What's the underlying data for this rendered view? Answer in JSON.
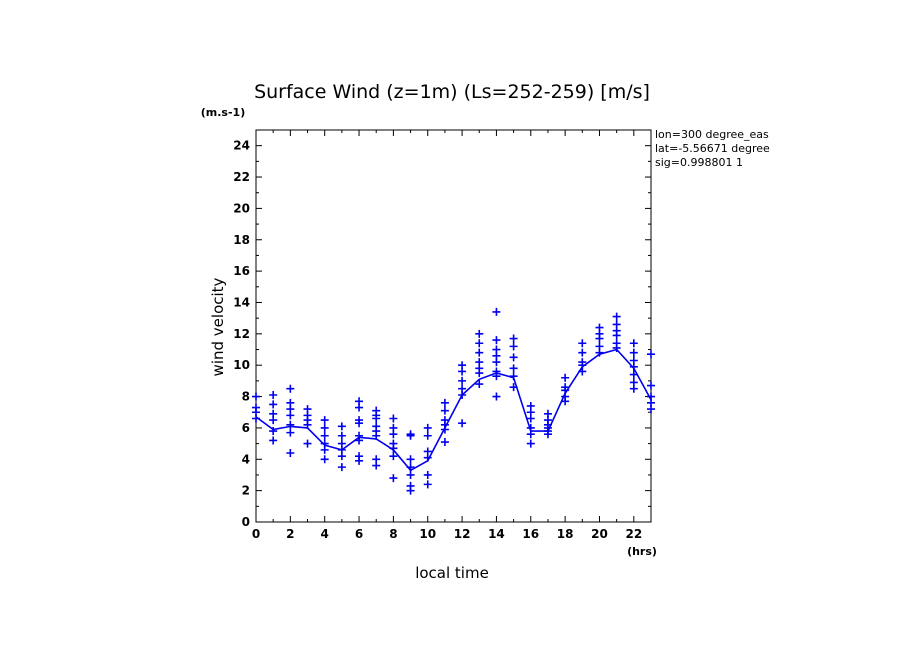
{
  "chart_data": {
    "type": "line",
    "title": "Surface Wind (z=1m) (Ls=252-259) [m/s]",
    "xlabel": "local time",
    "ylabel": "wind velocity",
    "x_unit": "(hrs)",
    "y_unit": "(m.s-1)",
    "xlim": [
      0,
      23
    ],
    "ylim": [
      0,
      25
    ],
    "x_ticks": [
      0,
      2,
      4,
      6,
      8,
      10,
      12,
      14,
      16,
      18,
      20,
      22
    ],
    "y_ticks": [
      0,
      2,
      4,
      6,
      8,
      10,
      12,
      14,
      16,
      18,
      20,
      22,
      24
    ],
    "grid": false,
    "annotations": [
      "lon=300 degree_eas",
      "lat=-5.56671 degree",
      "sig=0.998801 1"
    ],
    "color": "#0000ee",
    "series": [
      {
        "type": "line",
        "x": [
          0,
          1,
          2,
          3,
          4,
          5,
          6,
          7,
          8,
          9,
          10,
          11,
          12,
          13,
          14,
          15,
          16,
          17,
          18,
          19,
          20,
          21,
          22,
          23
        ],
        "y": [
          6.7,
          5.9,
          6.1,
          6.0,
          4.9,
          4.6,
          5.4,
          5.3,
          4.6,
          3.3,
          3.9,
          6.0,
          8.1,
          9.1,
          9.5,
          9.2,
          5.8,
          5.8,
          8.2,
          9.9,
          10.7,
          11.0,
          9.8,
          7.8
        ]
      },
      {
        "type": "scatter",
        "marker": "+",
        "points": [
          [
            0,
            8.0
          ],
          [
            0,
            7.3
          ],
          [
            0,
            7.0
          ],
          [
            0,
            6.6
          ],
          [
            1,
            8.1
          ],
          [
            1,
            7.5
          ],
          [
            1,
            6.9
          ],
          [
            1,
            6.5
          ],
          [
            1,
            5.8
          ],
          [
            1,
            5.2
          ],
          [
            2,
            8.5
          ],
          [
            2,
            7.6
          ],
          [
            2,
            7.2
          ],
          [
            2,
            6.8
          ],
          [
            2,
            6.2
          ],
          [
            2,
            5.7
          ],
          [
            2,
            4.4
          ],
          [
            3,
            7.2
          ],
          [
            3,
            6.8
          ],
          [
            3,
            6.5
          ],
          [
            3,
            6.2
          ],
          [
            3,
            5.0
          ],
          [
            4,
            6.5
          ],
          [
            4,
            6.0
          ],
          [
            4,
            5.5
          ],
          [
            4,
            5.0
          ],
          [
            4,
            4.6
          ],
          [
            4,
            4.0
          ],
          [
            5,
            6.1
          ],
          [
            5,
            5.5
          ],
          [
            5,
            5.0
          ],
          [
            5,
            4.6
          ],
          [
            5,
            4.2
          ],
          [
            5,
            3.5
          ],
          [
            6,
            7.7
          ],
          [
            6,
            7.3
          ],
          [
            6,
            6.5
          ],
          [
            6,
            6.3
          ],
          [
            6,
            5.5
          ],
          [
            6,
            5.2
          ],
          [
            6,
            4.2
          ],
          [
            6,
            3.9
          ],
          [
            7,
            7.1
          ],
          [
            7,
            6.8
          ],
          [
            7,
            6.6
          ],
          [
            7,
            6.1
          ],
          [
            7,
            5.8
          ],
          [
            7,
            5.5
          ],
          [
            7,
            4.0
          ],
          [
            7,
            3.6
          ],
          [
            8,
            6.6
          ],
          [
            8,
            6.0
          ],
          [
            8,
            5.6
          ],
          [
            8,
            5.0
          ],
          [
            8,
            4.7
          ],
          [
            8,
            4.2
          ],
          [
            8,
            2.8
          ],
          [
            9,
            5.6
          ],
          [
            9,
            5.5
          ],
          [
            9,
            4.0
          ],
          [
            9,
            3.5
          ],
          [
            9,
            3.0
          ],
          [
            9,
            2.3
          ],
          [
            9,
            2.0
          ],
          [
            10,
            6.0
          ],
          [
            10,
            5.5
          ],
          [
            10,
            4.5
          ],
          [
            10,
            4.1
          ],
          [
            10,
            3.0
          ],
          [
            10,
            2.4
          ],
          [
            11,
            7.6
          ],
          [
            11,
            7.1
          ],
          [
            11,
            6.5
          ],
          [
            11,
            6.2
          ],
          [
            11,
            5.9
          ],
          [
            11,
            5.1
          ],
          [
            12,
            10.0
          ],
          [
            12,
            9.6
          ],
          [
            12,
            9.0
          ],
          [
            12,
            8.5
          ],
          [
            12,
            8.1
          ],
          [
            12,
            6.3
          ],
          [
            13,
            12.0
          ],
          [
            13,
            11.4
          ],
          [
            13,
            10.8
          ],
          [
            13,
            10.2
          ],
          [
            13,
            9.8
          ],
          [
            13,
            9.5
          ],
          [
            13,
            8.8
          ],
          [
            14,
            13.4
          ],
          [
            14,
            11.6
          ],
          [
            14,
            11.0
          ],
          [
            14,
            10.6
          ],
          [
            14,
            10.2
          ],
          [
            14,
            9.6
          ],
          [
            14,
            9.3
          ],
          [
            14,
            8.0
          ],
          [
            15,
            11.7
          ],
          [
            15,
            11.2
          ],
          [
            15,
            10.5
          ],
          [
            15,
            9.8
          ],
          [
            15,
            9.3
          ],
          [
            15,
            8.6
          ],
          [
            16,
            7.4
          ],
          [
            16,
            7.0
          ],
          [
            16,
            6.6
          ],
          [
            16,
            6.0
          ],
          [
            16,
            5.6
          ],
          [
            16,
            5.0
          ],
          [
            17,
            6.9
          ],
          [
            17,
            6.5
          ],
          [
            17,
            6.2
          ],
          [
            17,
            6.0
          ],
          [
            17,
            5.8
          ],
          [
            17,
            5.6
          ],
          [
            18,
            9.2
          ],
          [
            18,
            8.6
          ],
          [
            18,
            8.4
          ],
          [
            18,
            8.0
          ],
          [
            18,
            7.7
          ],
          [
            19,
            11.4
          ],
          [
            19,
            10.8
          ],
          [
            19,
            10.2
          ],
          [
            19,
            10.0
          ],
          [
            19,
            9.6
          ],
          [
            20,
            12.4
          ],
          [
            20,
            12.0
          ],
          [
            20,
            11.7
          ],
          [
            20,
            11.2
          ],
          [
            20,
            10.8
          ],
          [
            21,
            13.1
          ],
          [
            21,
            12.6
          ],
          [
            21,
            12.2
          ],
          [
            21,
            11.9
          ],
          [
            21,
            11.4
          ],
          [
            21,
            11.1
          ],
          [
            22,
            11.4
          ],
          [
            22,
            10.8
          ],
          [
            22,
            10.3
          ],
          [
            22,
            9.9
          ],
          [
            22,
            9.4
          ],
          [
            22,
            8.9
          ],
          [
            22,
            8.5
          ],
          [
            23,
            10.7
          ],
          [
            23,
            8.7
          ],
          [
            23,
            8.0
          ],
          [
            23,
            7.6
          ],
          [
            23,
            7.2
          ]
        ]
      }
    ]
  }
}
